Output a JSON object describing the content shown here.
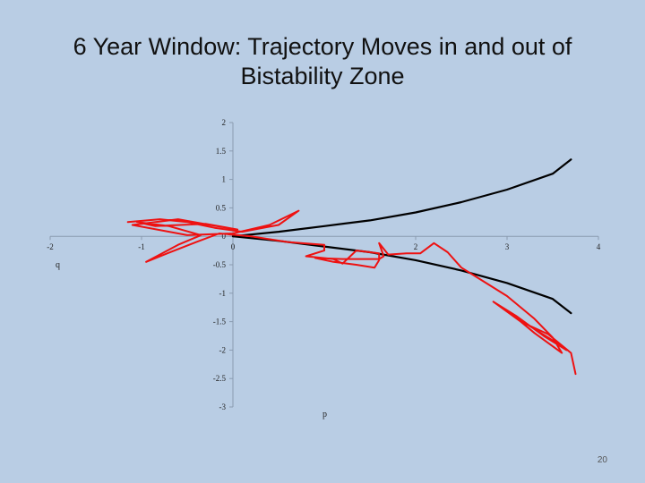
{
  "slide": {
    "title_line1": "6 Year Window: Trajectory Moves in and out of",
    "title_line2": "Bistability Zone",
    "page_number": "20"
  },
  "chart_data": {
    "type": "line",
    "title": "6 Year Window: Trajectory Moves in and out of Bistability Zone",
    "xlabel": "p",
    "ylabel": "q",
    "xlim": [
      -2,
      4
    ],
    "ylim": [
      -3,
      2
    ],
    "x_ticks": [
      -2,
      -1,
      0,
      2,
      3,
      4
    ],
    "y_ticks": [
      2,
      1.5,
      1,
      0.5,
      0,
      -0.5,
      -1,
      -1.5,
      -2,
      -2.5,
      -3
    ],
    "colors": {
      "boundary": "#000000",
      "trajectory": "#ee1111"
    },
    "series": [
      {
        "role": "boundary-upper",
        "points": [
          [
            0,
            0
          ],
          [
            0.5,
            0.08
          ],
          [
            1,
            0.18
          ],
          [
            1.5,
            0.28
          ],
          [
            2,
            0.42
          ],
          [
            2.5,
            0.6
          ],
          [
            3,
            0.82
          ],
          [
            3.5,
            1.1
          ],
          [
            3.7,
            1.35
          ]
        ]
      },
      {
        "role": "boundary-lower",
        "points": [
          [
            0,
            0
          ],
          [
            0.5,
            -0.08
          ],
          [
            1,
            -0.18
          ],
          [
            1.5,
            -0.28
          ],
          [
            2,
            -0.42
          ],
          [
            2.5,
            -0.6
          ],
          [
            3,
            -0.82
          ],
          [
            3.5,
            -1.1
          ],
          [
            3.7,
            -1.35
          ]
        ]
      },
      {
        "role": "trajectory",
        "points": [
          [
            -1.15,
            0.25
          ],
          [
            -0.8,
            0.3
          ],
          [
            -0.5,
            0.25
          ],
          [
            -0.2,
            0.15
          ],
          [
            0.1,
            0.08
          ],
          [
            0.5,
            0.2
          ],
          [
            0.72,
            0.45
          ],
          [
            0.4,
            0.2
          ],
          [
            0,
            0.05
          ],
          [
            -0.5,
            0.02
          ],
          [
            -1.1,
            0.2
          ],
          [
            -0.6,
            0.3
          ],
          [
            -0.25,
            0.2
          ],
          [
            0.05,
            0.12
          ],
          [
            -0.3,
            0.22
          ],
          [
            -0.85,
            0.18
          ],
          [
            -1.05,
            0.25
          ],
          [
            -0.7,
            0.18
          ],
          [
            -0.35,
            0.02
          ],
          [
            -0.6,
            -0.15
          ],
          [
            -0.8,
            -0.32
          ],
          [
            -0.95,
            -0.45
          ],
          [
            -0.72,
            -0.3
          ],
          [
            -0.4,
            -0.1
          ],
          [
            -0.15,
            0.05
          ],
          [
            0.2,
            0.0
          ],
          [
            0.6,
            -0.1
          ],
          [
            1.0,
            -0.15
          ],
          [
            1.0,
            -0.25
          ],
          [
            0.8,
            -0.35
          ],
          [
            1.1,
            -0.4
          ],
          [
            1.2,
            -0.48
          ],
          [
            1.35,
            -0.25
          ],
          [
            1.6,
            -0.3
          ],
          [
            1.6,
            -0.42
          ],
          [
            1.55,
            -0.55
          ],
          [
            1.35,
            -0.5
          ],
          [
            1.1,
            -0.45
          ],
          [
            0.9,
            -0.38
          ],
          [
            1.2,
            -0.4
          ],
          [
            1.6,
            -0.4
          ],
          [
            1.65,
            -0.35
          ],
          [
            1.6,
            -0.12
          ],
          [
            1.7,
            -0.32
          ],
          [
            1.9,
            -0.3
          ],
          [
            2.05,
            -0.3
          ],
          [
            2.2,
            -0.12
          ],
          [
            2.35,
            -0.28
          ],
          [
            2.5,
            -0.55
          ],
          [
            2.7,
            -0.75
          ],
          [
            3.0,
            -1.05
          ],
          [
            3.3,
            -1.45
          ],
          [
            3.5,
            -1.78
          ],
          [
            3.6,
            -2.05
          ],
          [
            3.3,
            -1.7
          ],
          [
            3.0,
            -1.3
          ],
          [
            3.25,
            -1.58
          ],
          [
            3.55,
            -1.88
          ],
          [
            3.65,
            -2.0
          ],
          [
            3.4,
            -1.75
          ],
          [
            3.1,
            -1.4
          ],
          [
            2.85,
            -1.15
          ],
          [
            3.15,
            -1.5
          ],
          [
            3.45,
            -1.72
          ],
          [
            3.7,
            -2.05
          ],
          [
            3.75,
            -2.42
          ]
        ]
      }
    ]
  }
}
